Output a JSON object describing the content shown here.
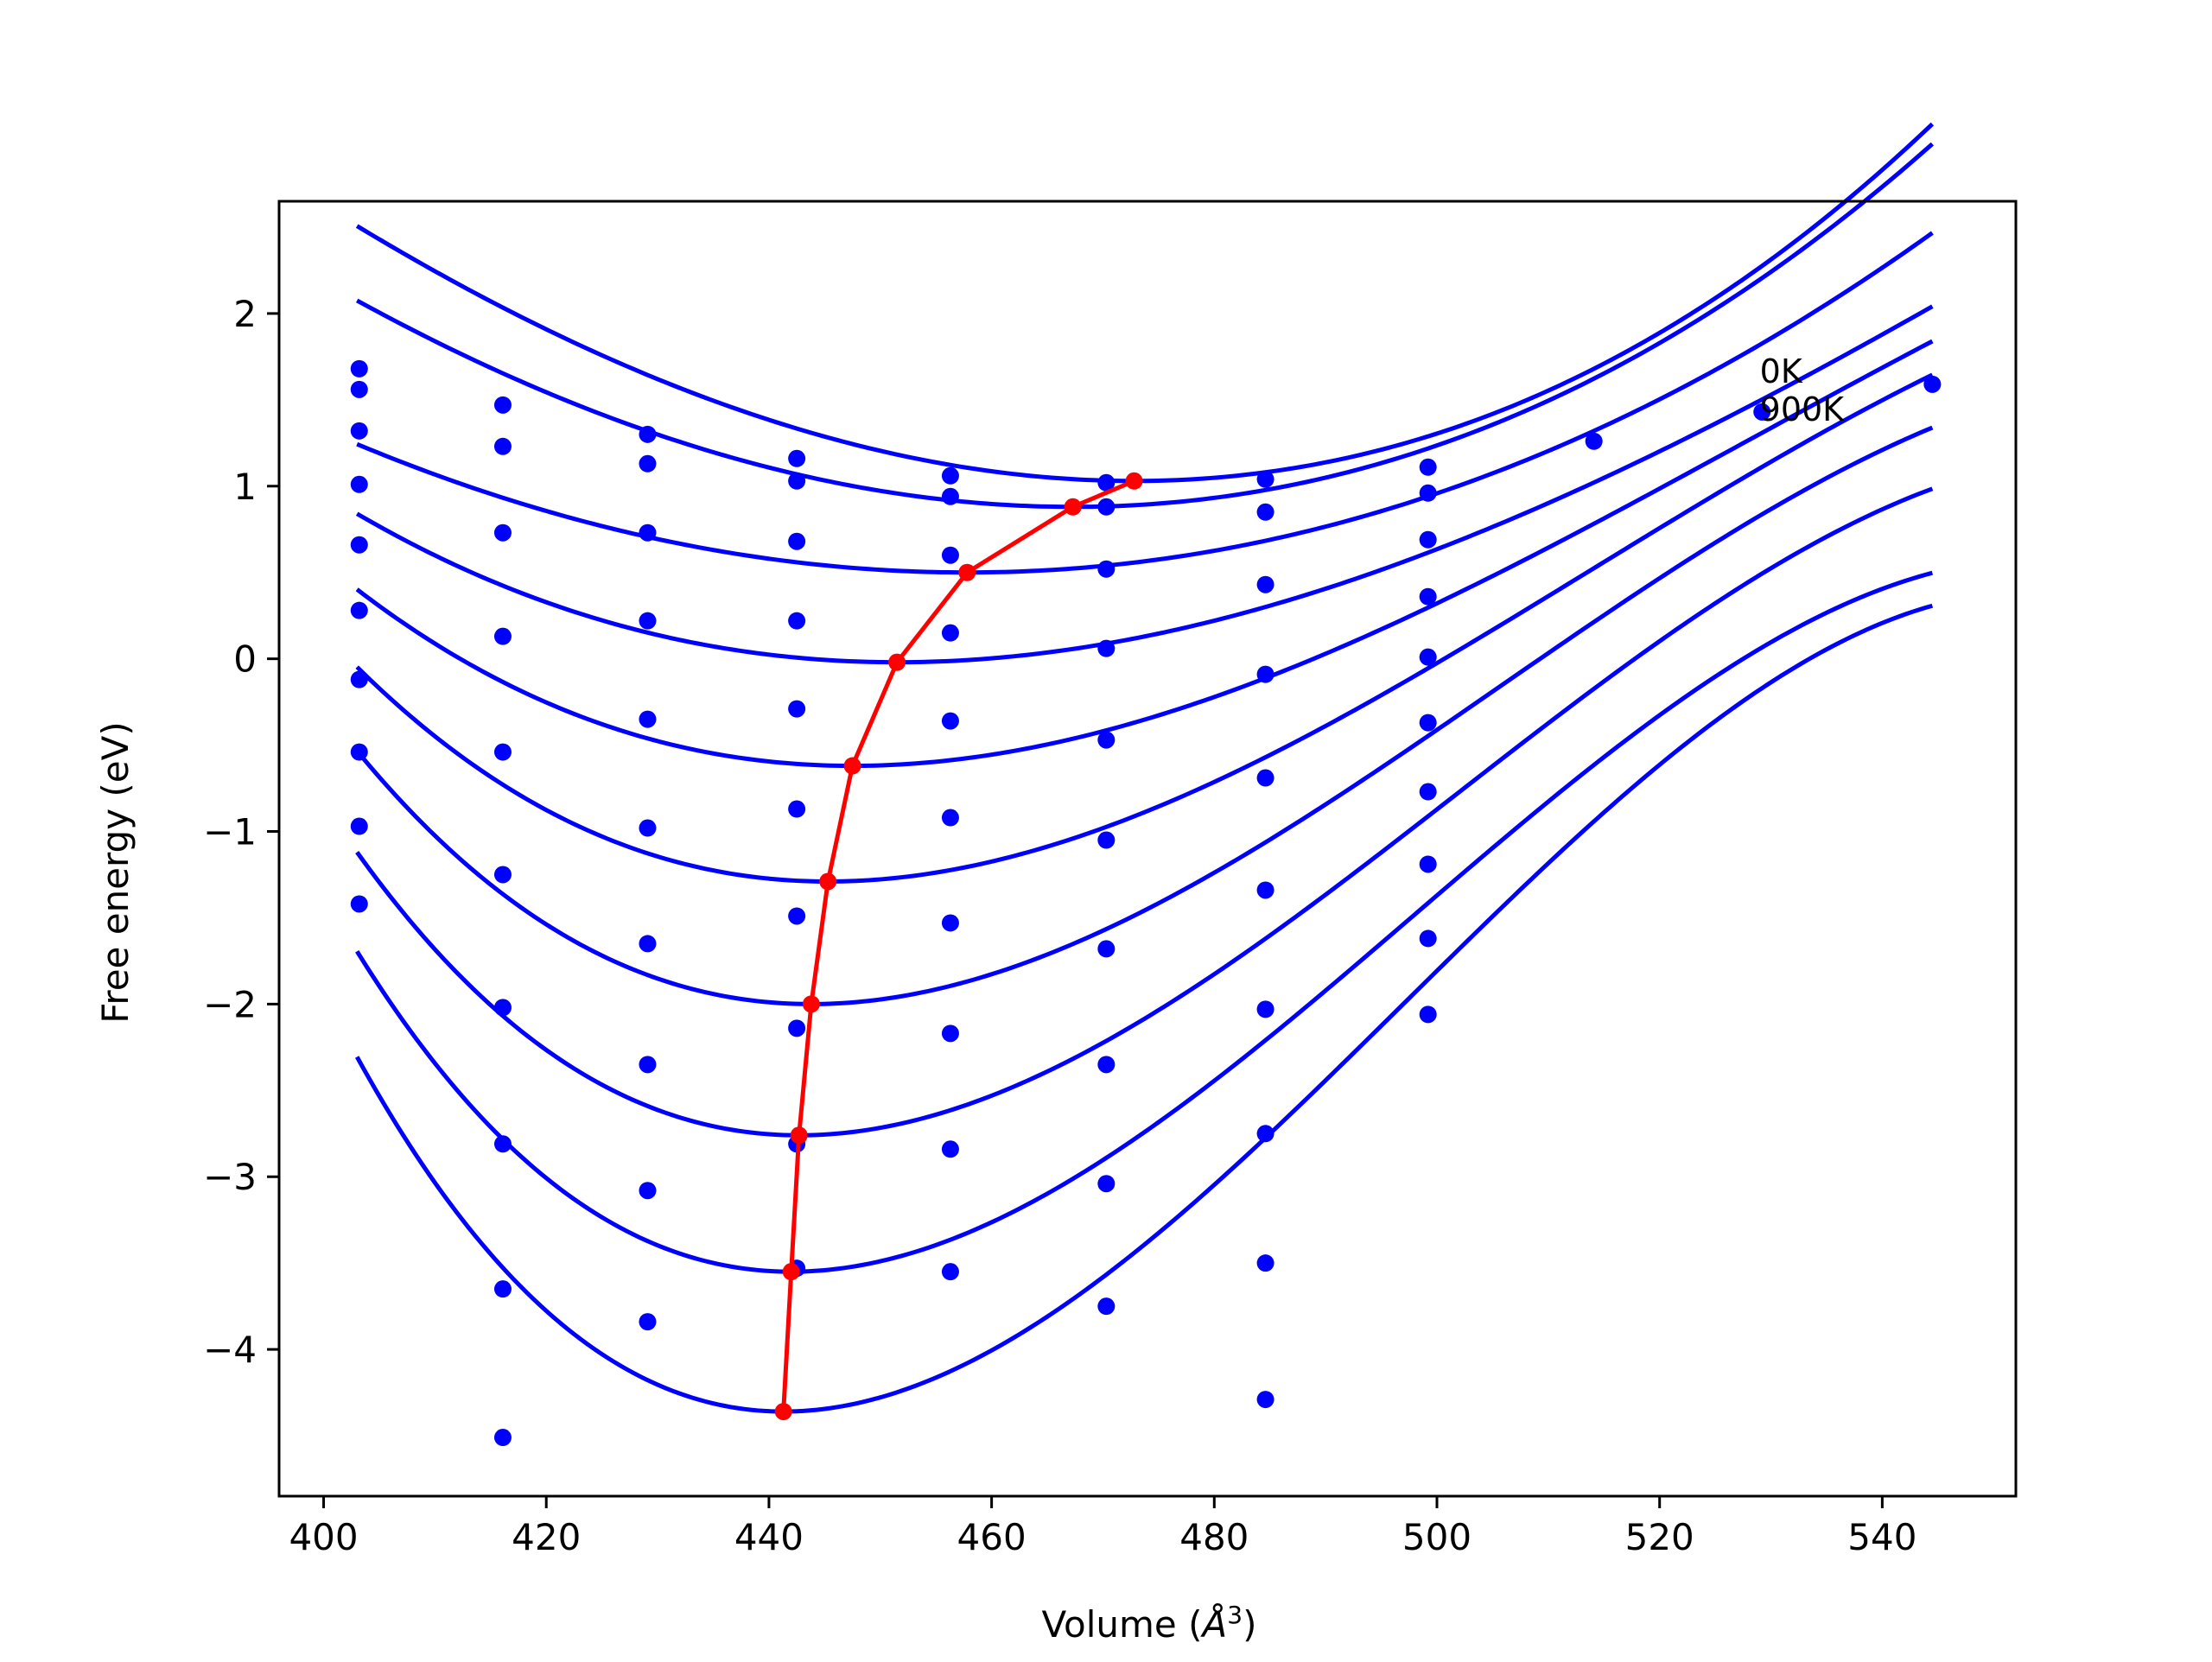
{
  "chart_data": {
    "type": "line",
    "title": "",
    "xlabel": "Volume (",
    "xlabel_symbol": "Å",
    "xlabel_exponent": "3",
    "xlabel_close": ")",
    "ylabel": "Free energy (eV)",
    "xlim": [
      396,
      552
    ],
    "ylim": [
      -4.85,
      2.65
    ],
    "xticks": [
      400,
      420,
      440,
      460,
      480,
      500,
      520,
      540
    ],
    "xtick_labels": [
      "400",
      "420",
      "440",
      "460",
      "480",
      "500",
      "520",
      "540"
    ],
    "yticks": [
      -4,
      -3,
      -2,
      -1,
      0,
      1,
      2
    ],
    "ytick_labels": [
      "−4",
      "−3",
      "−2",
      "−1",
      "0",
      "1",
      "2"
    ],
    "annotations": [
      {
        "text": "0K",
        "x": 529,
        "y": 1.6
      },
      {
        "text": "900K",
        "x": 529,
        "y": 1.38
      }
    ],
    "grid": false,
    "colors": {
      "fit": "#0000ff",
      "points": "#0000ff",
      "minima": "#ff0000"
    },
    "fit_x_range": [
      403,
      544.5
    ],
    "series": [
      {
        "label": "0K",
        "x_min": 472.8,
        "e_min": 1.03,
        "curvature": 0.000352,
        "cubic": 7e-07,
        "points": [
          [
            403.2,
            1.68
          ],
          [
            416.1,
            1.47
          ],
          [
            429.1,
            1.3
          ],
          [
            442.5,
            1.16
          ],
          [
            456.3,
            1.06
          ],
          [
            470.3,
            1.02
          ],
          [
            484.6,
            1.04
          ],
          [
            499.2,
            1.11
          ],
          [
            514.1,
            1.26
          ],
          [
            529.2,
            1.43
          ],
          [
            544.5,
            1.59
          ]
        ]
      },
      {
        "label": "",
        "x_min": 467.3,
        "e_min": 0.88,
        "curvature": 0.000318,
        "cubic": 4.5e-07,
        "points": [
          [
            403.2,
            1.56
          ],
          [
            416.1,
            1.23
          ],
          [
            429.1,
            1.13
          ],
          [
            442.5,
            1.03
          ],
          [
            456.3,
            0.94
          ],
          [
            470.3,
            0.88
          ],
          [
            484.6,
            0.85
          ],
          [
            499.2,
            0.96
          ]
        ]
      },
      {
        "label": "",
        "x_min": 457.8,
        "e_min": 0.5,
        "curvature": 0.000253,
        "cubic": 1e-07,
        "points": [
          [
            403.2,
            1.32
          ],
          [
            416.1,
            0.73
          ],
          [
            429.1,
            0.73
          ],
          [
            442.5,
            0.68
          ],
          [
            456.3,
            0.6
          ],
          [
            470.3,
            0.52
          ],
          [
            484.6,
            0.43
          ],
          [
            499.2,
            0.69
          ]
        ]
      },
      {
        "label": "",
        "x_min": 451.5,
        "e_min": -0.02,
        "curvature": 0.000322,
        "cubic": -9e-07,
        "points": [
          [
            403.2,
            1.01
          ],
          [
            416.1,
            0.13
          ],
          [
            429.1,
            0.22
          ],
          [
            442.5,
            0.22
          ],
          [
            456.3,
            0.15
          ],
          [
            470.3,
            0.06
          ],
          [
            484.6,
            -0.09
          ],
          [
            499.2,
            0.36
          ]
        ]
      },
      {
        "label": "",
        "x_min": 447.5,
        "e_min": -0.62,
        "curvature": 0.000436,
        "cubic": -1.8e-06,
        "points": [
          [
            403.2,
            0.66
          ],
          [
            416.1,
            -0.54
          ],
          [
            429.1,
            -0.35
          ],
          [
            442.5,
            -0.29
          ],
          [
            456.3,
            -0.36
          ],
          [
            470.3,
            -0.47
          ],
          [
            484.6,
            -0.69
          ],
          [
            499.2,
            0.01
          ]
        ]
      },
      {
        "label": "",
        "x_min": 445.3,
        "e_min": -1.29,
        "curvature": 0.000576,
        "cubic": -2.8e-06,
        "points": [
          [
            403.2,
            0.28
          ],
          [
            416.1,
            -1.25
          ],
          [
            429.1,
            -0.98
          ],
          [
            442.5,
            -0.87
          ],
          [
            456.3,
            -0.92
          ],
          [
            470.3,
            -1.05
          ],
          [
            484.6,
            -1.34
          ],
          [
            499.2,
            -0.37
          ]
        ]
      },
      {
        "label": "",
        "x_min": 443.8,
        "e_min": -2.0,
        "curvature": 0.000722,
        "cubic": -3.9e-06,
        "points": [
          [
            403.2,
            -0.12
          ],
          [
            416.1,
            -2.02
          ],
          [
            429.1,
            -1.65
          ],
          [
            442.5,
            -1.49
          ],
          [
            456.3,
            -1.53
          ],
          [
            470.3,
            -1.68
          ],
          [
            484.6,
            -2.03
          ],
          [
            499.2,
            -0.77
          ]
        ]
      },
      {
        "label": "",
        "x_min": 442.7,
        "e_min": -2.76,
        "curvature": 0.00085,
        "cubic": -4.8e-06,
        "points": [
          [
            403.2,
            -0.54
          ],
          [
            416.1,
            -2.81
          ],
          [
            429.1,
            -2.35
          ],
          [
            442.5,
            -2.14
          ],
          [
            456.3,
            -2.17
          ],
          [
            470.3,
            -2.35
          ],
          [
            484.6,
            -2.75
          ],
          [
            499.2,
            -1.19
          ]
        ]
      },
      {
        "label": "",
        "x_min": 442.0,
        "e_min": -3.55,
        "curvature": 0.00099,
        "cubic": -5.9e-06,
        "points": [
          [
            403.2,
            -0.97
          ],
          [
            416.1,
            -3.65
          ],
          [
            429.1,
            -3.08
          ],
          [
            442.5,
            -2.81
          ],
          [
            456.3,
            -2.84
          ],
          [
            470.3,
            -3.04
          ],
          [
            484.6,
            -3.5
          ],
          [
            499.2,
            -1.62
          ]
        ]
      },
      {
        "label": "900K",
        "x_min": 441.3,
        "e_min": -4.36,
        "curvature": 0.00114,
        "cubic": -6.8e-06,
        "points": [
          [
            403.2,
            -1.42
          ],
          [
            416.1,
            -4.51
          ],
          [
            429.1,
            -3.84
          ],
          [
            442.5,
            -3.53
          ],
          [
            456.3,
            -3.55
          ],
          [
            470.3,
            -3.75
          ],
          [
            484.6,
            -4.29
          ],
          [
            499.2,
            -2.06
          ]
        ]
      }
    ],
    "minima_path": {
      "x": [
        472.8,
        467.3,
        457.8,
        451.5,
        447.5,
        445.3,
        443.8,
        442.7,
        442.0,
        441.3
      ],
      "y": [
        1.03,
        0.88,
        0.5,
        -0.02,
        -0.62,
        -1.29,
        -2.0,
        -2.76,
        -3.55,
        -4.36
      ]
    }
  }
}
